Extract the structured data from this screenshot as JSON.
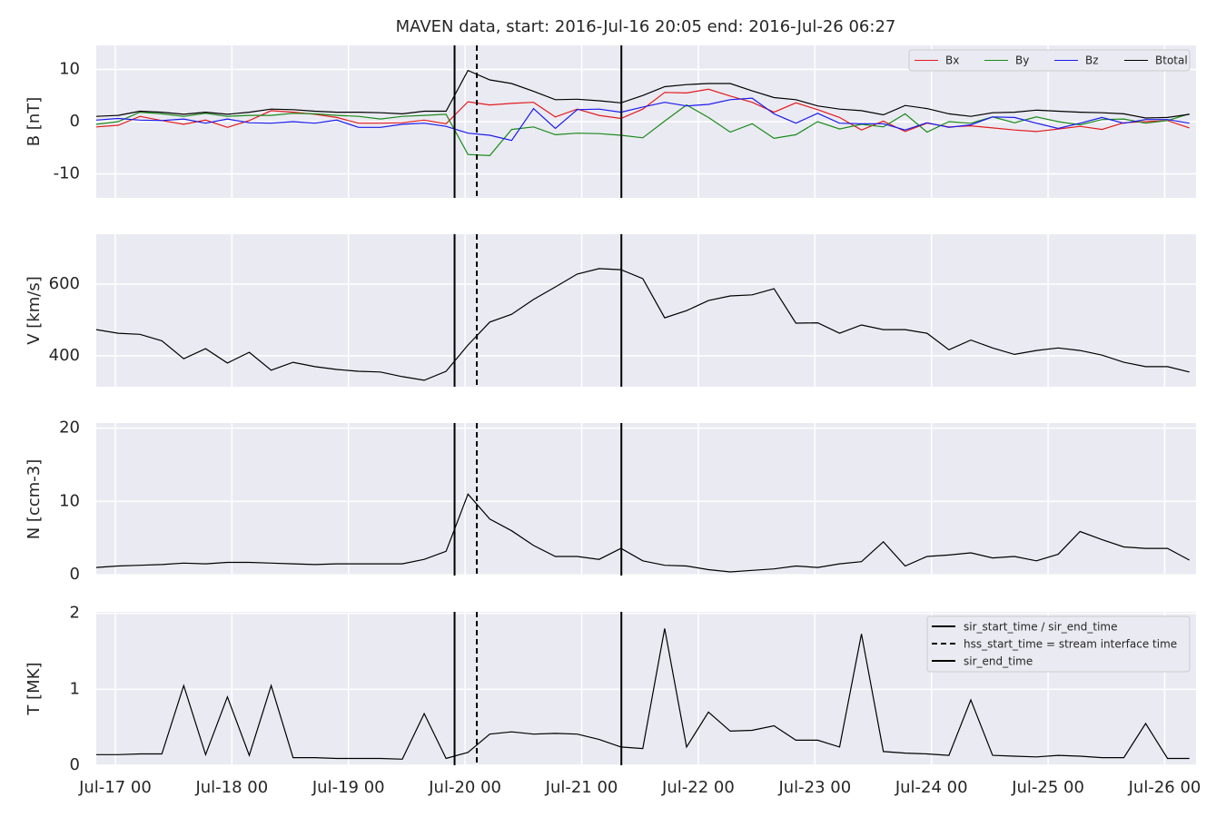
{
  "chart_data": [
    {
      "type": "line",
      "title": "MAVEN data, start: 2016-Jul-16 20:05  end: 2016-Jul-26 06:27",
      "y_label": "B [nT]",
      "x": [
        "2016-07-16 20:05",
        "2016-07-17 00:35",
        "2016-07-17 05:05",
        "2016-07-17 09:35",
        "2016-07-17 14:05",
        "2016-07-17 18:35",
        "2016-07-17 23:05",
        "2016-07-18 03:35",
        "2016-07-18 08:05",
        "2016-07-18 12:35",
        "2016-07-18 17:05",
        "2016-07-18 21:35",
        "2016-07-19 02:05",
        "2016-07-19 06:35",
        "2016-07-19 11:05",
        "2016-07-19 15:35",
        "2016-07-19 20:05",
        "2016-07-20 00:35",
        "2016-07-20 05:05",
        "2016-07-20 09:35",
        "2016-07-20 14:05",
        "2016-07-20 18:35",
        "2016-07-20 23:05",
        "2016-07-21 03:35",
        "2016-07-21 08:05",
        "2016-07-21 12:35",
        "2016-07-21 17:05",
        "2016-07-21 21:35",
        "2016-07-22 02:05",
        "2016-07-22 06:35",
        "2016-07-22 11:05",
        "2016-07-22 15:35",
        "2016-07-22 20:05",
        "2016-07-23 00:35",
        "2016-07-23 05:05",
        "2016-07-23 09:35",
        "2016-07-23 14:05",
        "2016-07-23 18:35",
        "2016-07-23 23:05",
        "2016-07-24 03:35",
        "2016-07-24 08:05",
        "2016-07-24 12:35",
        "2016-07-24 17:05",
        "2016-07-24 21:35",
        "2016-07-25 02:05",
        "2016-07-25 06:35",
        "2016-07-25 11:05",
        "2016-07-25 15:35",
        "2016-07-25 20:05",
        "2016-07-26 00:35",
        "2016-07-26 05:05"
      ],
      "series": [
        {
          "name": "Bx",
          "color": "#e41a1c",
          "values": [
            -1.0,
            -0.7,
            1.0,
            0.2,
            -0.5,
            0.3,
            -1.1,
            0.2,
            2.1,
            1.8,
            1.4,
            0.8,
            -0.3,
            -0.3,
            -0.2,
            0.3,
            -0.4,
            3.8,
            3.2,
            3.5,
            3.7,
            0.9,
            2.4,
            1.2,
            0.6,
            2.4,
            5.6,
            5.5,
            6.2,
            4.9,
            3.7,
            1.8,
            3.6,
            2.3,
            0.8,
            -1.6,
            0.1,
            -1.9,
            -0.3,
            -1.0,
            -0.8,
            -1.2,
            -1.6,
            -1.9,
            -1.4,
            -0.9,
            -1.5,
            -0.2,
            0.0,
            0.2,
            -1.2
          ]
        },
        {
          "name": "By",
          "color": "#1a8a1a",
          "values": [
            -0.5,
            0.0,
            1.8,
            1.5,
            1.0,
            1.6,
            1.0,
            1.2,
            1.2,
            1.6,
            1.5,
            1.2,
            1.0,
            0.5,
            1.0,
            1.2,
            1.4,
            -6.3,
            -6.5,
            -1.5,
            -1.0,
            -2.5,
            -2.2,
            -2.3,
            -2.6,
            -3.1,
            0.1,
            3.2,
            0.8,
            -2.0,
            -0.4,
            -3.2,
            -2.5,
            0.0,
            -1.4,
            -0.5,
            -1.0,
            1.5,
            -2.0,
            0.0,
            -0.3,
            0.9,
            -0.2,
            0.9,
            0.0,
            -0.6,
            0.4,
            0.5,
            -0.3,
            0.2,
            1.5
          ]
        },
        {
          "name": "Bz",
          "color": "#1a1aee",
          "values": [
            0.3,
            0.6,
            0.3,
            0.2,
            0.5,
            -0.3,
            0.5,
            -0.2,
            -0.3,
            0.0,
            -0.3,
            0.3,
            -1.1,
            -1.1,
            -0.5,
            -0.3,
            -0.9,
            -2.2,
            -2.6,
            -3.6,
            2.5,
            -1.3,
            2.3,
            2.4,
            1.8,
            2.8,
            3.7,
            3.0,
            3.3,
            4.2,
            4.5,
            1.5,
            -0.3,
            1.6,
            -0.3,
            -0.4,
            -0.4,
            -1.6,
            -0.2,
            -1.1,
            -0.6,
            0.9,
            0.8,
            -0.3,
            -1.3,
            -0.3,
            0.8,
            -0.3,
            0.4,
            0.4,
            -0.3
          ]
        },
        {
          "name": "Btotal",
          "color": "#000000",
          "values": [
            1.0,
            1.2,
            2.0,
            1.8,
            1.4,
            1.8,
            1.4,
            1.8,
            2.4,
            2.3,
            2.0,
            1.8,
            1.8,
            1.7,
            1.5,
            2.0,
            2.0,
            9.8,
            8.0,
            7.3,
            5.8,
            4.2,
            4.3,
            4.0,
            3.6,
            5.0,
            6.7,
            7.1,
            7.3,
            7.3,
            5.9,
            4.6,
            4.2,
            3.0,
            2.4,
            2.1,
            1.3,
            3.1,
            2.5,
            1.5,
            1.0,
            1.7,
            1.8,
            2.2,
            2.0,
            1.8,
            1.7,
            1.5,
            0.7,
            0.8,
            1.4
          ]
        }
      ],
      "xlim": [
        "2016-07-16 20:05",
        "2016-07-26 06:27"
      ],
      "ylim": [
        -14.6,
        14.6
      ],
      "yticks": [
        -10,
        0,
        10
      ],
      "grid": true,
      "legend": "upper right"
    },
    {
      "type": "line",
      "y_label": "V [km/s]",
      "x": [
        "2016-07-16 20:05",
        "2016-07-17 00:35",
        "2016-07-17 05:05",
        "2016-07-17 09:35",
        "2016-07-17 14:05",
        "2016-07-17 18:35",
        "2016-07-17 23:05",
        "2016-07-18 03:35",
        "2016-07-18 08:05",
        "2016-07-18 12:35",
        "2016-07-18 17:05",
        "2016-07-18 21:35",
        "2016-07-19 02:05",
        "2016-07-19 06:35",
        "2016-07-19 11:05",
        "2016-07-19 15:35",
        "2016-07-19 20:05",
        "2016-07-20 00:35",
        "2016-07-20 05:05",
        "2016-07-20 09:35",
        "2016-07-20 14:05",
        "2016-07-20 18:35",
        "2016-07-20 23:05",
        "2016-07-21 03:35",
        "2016-07-21 08:05",
        "2016-07-21 12:35",
        "2016-07-21 17:05",
        "2016-07-21 21:35",
        "2016-07-22 02:05",
        "2016-07-22 06:35",
        "2016-07-22 11:05",
        "2016-07-22 15:35",
        "2016-07-22 20:05",
        "2016-07-23 00:35",
        "2016-07-23 05:05",
        "2016-07-23 09:35",
        "2016-07-23 14:05",
        "2016-07-23 18:35",
        "2016-07-23 23:05",
        "2016-07-24 03:35",
        "2016-07-24 08:05",
        "2016-07-24 12:35",
        "2016-07-24 17:05",
        "2016-07-24 21:35",
        "2016-07-25 02:05",
        "2016-07-25 06:35",
        "2016-07-25 11:05",
        "2016-07-25 15:35",
        "2016-07-25 20:05",
        "2016-07-26 00:35",
        "2016-07-26 05:05"
      ],
      "color": "#000000",
      "values": [
        473,
        463,
        460,
        442,
        392,
        420,
        380,
        410,
        360,
        382,
        370,
        362,
        357,
        355,
        342,
        332,
        357,
        430,
        494,
        516,
        557,
        592,
        628,
        643,
        640,
        615,
        506,
        526,
        554,
        567,
        570,
        587,
        491,
        492,
        463,
        486,
        473,
        473,
        463,
        417,
        444,
        422,
        404,
        415,
        422,
        415,
        402,
        382,
        370,
        370,
        355
      ],
      "xlim": [
        "2016-07-16 20:05",
        "2016-07-26 06:27"
      ],
      "ylim": [
        314,
        739
      ],
      "yticks": [
        400,
        600
      ],
      "grid": true
    },
    {
      "type": "line",
      "y_label": "N [ccm-3]",
      "x": [
        "2016-07-16 20:05",
        "2016-07-17 00:35",
        "2016-07-17 05:05",
        "2016-07-17 09:35",
        "2016-07-17 14:05",
        "2016-07-17 18:35",
        "2016-07-17 23:05",
        "2016-07-18 03:35",
        "2016-07-18 08:05",
        "2016-07-18 12:35",
        "2016-07-18 17:05",
        "2016-07-18 21:35",
        "2016-07-19 02:05",
        "2016-07-19 06:35",
        "2016-07-19 11:05",
        "2016-07-19 15:35",
        "2016-07-19 20:05",
        "2016-07-20 00:35",
        "2016-07-20 05:05",
        "2016-07-20 09:35",
        "2016-07-20 14:05",
        "2016-07-20 18:35",
        "2016-07-20 23:05",
        "2016-07-21 03:35",
        "2016-07-21 08:05",
        "2016-07-21 12:35",
        "2016-07-21 17:05",
        "2016-07-21 21:35",
        "2016-07-22 02:05",
        "2016-07-22 06:35",
        "2016-07-22 11:05",
        "2016-07-22 15:35",
        "2016-07-22 20:05",
        "2016-07-23 00:35",
        "2016-07-23 05:05",
        "2016-07-23 09:35",
        "2016-07-23 14:05",
        "2016-07-23 18:35",
        "2016-07-23 23:05",
        "2016-07-24 03:35",
        "2016-07-24 08:05",
        "2016-07-24 12:35",
        "2016-07-24 17:05",
        "2016-07-24 21:35",
        "2016-07-25 02:05",
        "2016-07-25 06:35",
        "2016-07-25 11:05",
        "2016-07-25 15:35",
        "2016-07-25 20:05",
        "2016-07-26 00:35",
        "2016-07-26 05:05"
      ],
      "color": "#000000",
      "values": [
        1.0,
        1.2,
        1.3,
        1.4,
        1.6,
        1.5,
        1.7,
        1.7,
        1.6,
        1.5,
        1.4,
        1.5,
        1.5,
        1.5,
        1.5,
        2.1,
        3.2,
        11.0,
        7.6,
        6.0,
        4.0,
        2.5,
        2.5,
        2.1,
        3.6,
        1.9,
        1.3,
        1.2,
        0.7,
        0.4,
        0.6,
        0.8,
        1.2,
        1.0,
        1.5,
        1.8,
        4.5,
        1.2,
        2.5,
        2.7,
        3.0,
        2.3,
        2.5,
        1.9,
        2.8,
        5.9,
        4.8,
        3.8,
        3.6,
        3.6,
        2.0
      ],
      "xlim": [
        "2016-07-16 20:05",
        "2016-07-26 06:27"
      ],
      "ylim": [
        -0.1,
        20.7
      ],
      "yticks": [
        0,
        10,
        20
      ],
      "grid": true
    },
    {
      "type": "line",
      "y_label": "T [MK]",
      "x": [
        "2016-07-16 20:05",
        "2016-07-17 00:35",
        "2016-07-17 05:05",
        "2016-07-17 09:35",
        "2016-07-17 14:05",
        "2016-07-17 18:35",
        "2016-07-17 23:05",
        "2016-07-18 03:35",
        "2016-07-18 08:05",
        "2016-07-18 12:35",
        "2016-07-18 17:05",
        "2016-07-18 21:35",
        "2016-07-19 02:05",
        "2016-07-19 06:35",
        "2016-07-19 11:05",
        "2016-07-19 15:35",
        "2016-07-19 20:05",
        "2016-07-20 00:35",
        "2016-07-20 05:05",
        "2016-07-20 09:35",
        "2016-07-20 14:05",
        "2016-07-20 18:35",
        "2016-07-20 23:05",
        "2016-07-21 03:35",
        "2016-07-21 08:05",
        "2016-07-21 12:35",
        "2016-07-21 17:05",
        "2016-07-21 21:35",
        "2016-07-22 02:05",
        "2016-07-22 06:35",
        "2016-07-22 11:05",
        "2016-07-22 15:35",
        "2016-07-22 20:05",
        "2016-07-23 00:35",
        "2016-07-23 05:05",
        "2016-07-23 09:35",
        "2016-07-23 14:05",
        "2016-07-23 18:35",
        "2016-07-23 23:05",
        "2016-07-24 03:35",
        "2016-07-24 08:05",
        "2016-07-24 12:35",
        "2016-07-24 17:05",
        "2016-07-24 21:35",
        "2016-07-25 02:05",
        "2016-07-25 06:35",
        "2016-07-25 11:05",
        "2016-07-25 15:35",
        "2016-07-25 20:05",
        "2016-07-26 00:35",
        "2016-07-26 05:05"
      ],
      "color": "#000000",
      "values": [
        0.14,
        0.14,
        0.15,
        0.15,
        1.05,
        0.14,
        0.9,
        0.13,
        1.05,
        0.1,
        0.1,
        0.09,
        0.09,
        0.09,
        0.08,
        0.68,
        0.09,
        0.17,
        0.41,
        0.44,
        0.41,
        0.42,
        0.41,
        0.34,
        0.24,
        0.22,
        1.8,
        0.24,
        0.7,
        0.45,
        0.46,
        0.52,
        0.33,
        0.33,
        0.24,
        1.73,
        0.18,
        0.16,
        0.15,
        0.13,
        0.86,
        0.13,
        0.12,
        0.11,
        0.13,
        0.12,
        0.1,
        0.1,
        0.55,
        0.09,
        0.09
      ],
      "xlim": [
        "2016-07-16 20:05",
        "2016-07-26 06:27"
      ],
      "ylim": [
        0,
        2.02
      ],
      "yticks": [
        0,
        1,
        2
      ],
      "grid": true,
      "xticks": [
        {
          "value": "2016-07-17 00:00",
          "label": "Jul-17 00"
        },
        {
          "value": "2016-07-18 00:00",
          "label": "Jul-18 00"
        },
        {
          "value": "2016-07-19 00:00",
          "label": "Jul-19 00"
        },
        {
          "value": "2016-07-20 00:00",
          "label": "Jul-20 00"
        },
        {
          "value": "2016-07-21 00:00",
          "label": "Jul-21 00"
        },
        {
          "value": "2016-07-22 00:00",
          "label": "Jul-22 00"
        },
        {
          "value": "2016-07-23 00:00",
          "label": "Jul-23 00"
        },
        {
          "value": "2016-07-24 00:00",
          "label": "Jul-24 00"
        },
        {
          "value": "2016-07-25 00:00",
          "label": "Jul-25 00"
        },
        {
          "value": "2016-07-26 00:00",
          "label": "Jul-26 00"
        }
      ],
      "vlines": [
        {
          "name": "sir_start_time / sir_end_time",
          "x": "2016-07-19 21:50",
          "style": "solid",
          "color": "#000000"
        },
        {
          "name": "hss_start_time = stream interface time",
          "x": "2016-07-20 02:25",
          "style": "dashed",
          "color": "#000000"
        },
        {
          "name": "sir_end_time",
          "x": "2016-07-21 08:10",
          "style": "solid",
          "color": "#000000"
        }
      ],
      "legend": "upper right"
    }
  ]
}
